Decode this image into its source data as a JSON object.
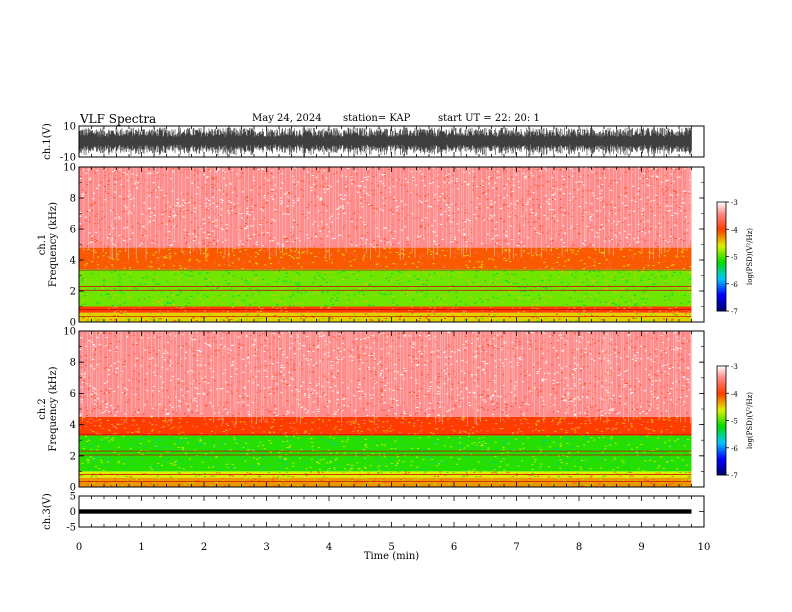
{
  "header": {
    "title": "VLF Spectra",
    "date": "May 24, 2024",
    "station": "station= KAP",
    "start": "start  UT  =   22: 20: 1"
  },
  "chart_data": [
    {
      "type": "line",
      "panel": "ch1-waveform",
      "ylabel": "ch.1(V)",
      "ylim": [
        -10,
        10
      ],
      "yticks": [
        "10",
        "-10"
      ],
      "xlim": [
        0,
        10
      ],
      "description_values": "dense noisy waveform, amplitude mostly between -8 and 8 V, extends to ~9.8 min"
    },
    {
      "type": "heatmap",
      "panel": "ch1-spectrogram",
      "ylabel": "ch.1\nFrequency (kHz)",
      "ylim": [
        0,
        10
      ],
      "yticks": [
        "0",
        "2",
        "4",
        "6",
        "8",
        "10"
      ],
      "xlim": [
        0,
        10
      ],
      "data_xmax": 9.8,
      "color_bands": [
        {
          "from_khz": 0.0,
          "to_khz": 0.6,
          "level": -4.5
        },
        {
          "from_khz": 0.6,
          "to_khz": 1.0,
          "level": -4.0
        },
        {
          "from_khz": 1.0,
          "to_khz": 3.4,
          "level": -4.9
        },
        {
          "from_khz": 3.4,
          "to_khz": 4.8,
          "level": -4.1
        },
        {
          "from_khz": 4.8,
          "to_khz": 10.0,
          "level": -3.4
        }
      ],
      "colorbar": {
        "label": "log(PSD)(V²/Hz)",
        "range": [
          -7,
          -3
        ],
        "ticks": [
          "-3",
          "-4",
          "-5",
          "-6",
          "-7"
        ]
      }
    },
    {
      "type": "heatmap",
      "panel": "ch2-spectrogram",
      "ylabel": "ch.2\nFrequency (kHz)",
      "ylim": [
        0,
        10
      ],
      "yticks": [
        "0",
        "2",
        "4",
        "6",
        "8",
        "10"
      ],
      "xlim": [
        0,
        10
      ],
      "data_xmax": 9.8,
      "color_bands": [
        {
          "from_khz": 0.0,
          "to_khz": 0.6,
          "level": -4.3
        },
        {
          "from_khz": 0.6,
          "to_khz": 1.0,
          "level": -4.6
        },
        {
          "from_khz": 1.0,
          "to_khz": 3.3,
          "level": -5.1
        },
        {
          "from_khz": 3.3,
          "to_khz": 4.5,
          "level": -4.0
        },
        {
          "from_khz": 4.5,
          "to_khz": 10.0,
          "level": -3.4
        }
      ],
      "colorbar": {
        "label": "log(PSD)(V²/Hz)",
        "range": [
          -7,
          -3
        ],
        "ticks": [
          "-3",
          "-4",
          "-5",
          "-6",
          "-7"
        ]
      }
    },
    {
      "type": "line",
      "panel": "ch3-waveform",
      "ylabel": "ch.3(V)",
      "ylim": [
        -5,
        5
      ],
      "yticks": [
        "5",
        "0",
        "-5"
      ],
      "xlim": [
        0,
        10
      ],
      "center_value": 0,
      "band_halfwidth": 0.7,
      "xlabel": "Time (min)",
      "xticks": [
        "0",
        "1",
        "2",
        "3",
        "4",
        "5",
        "6",
        "7",
        "8",
        "9",
        "10"
      ]
    }
  ],
  "colors": {
    "axis": "#000000",
    "waveform": "#000000"
  }
}
